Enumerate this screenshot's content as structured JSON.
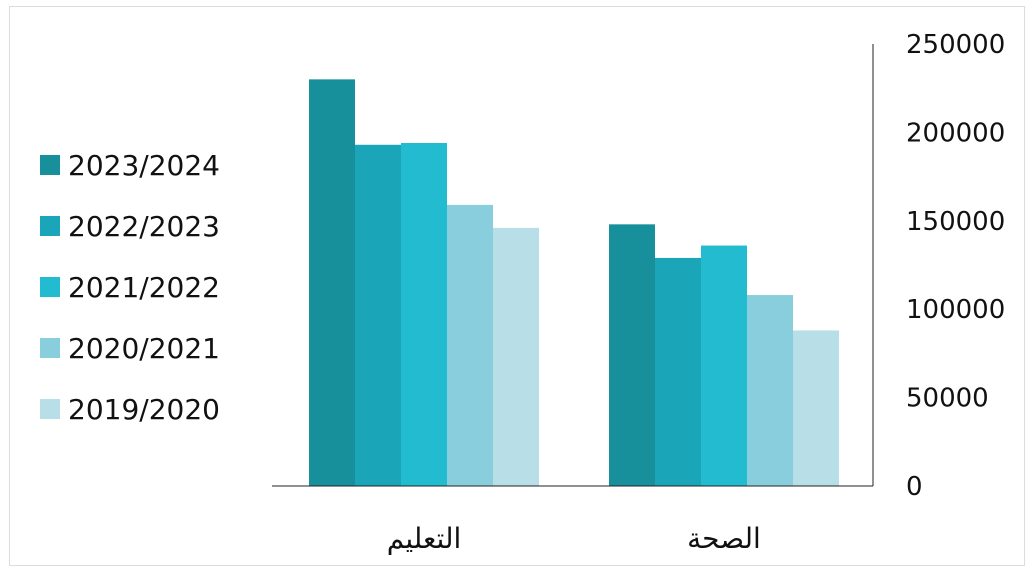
{
  "chart_data": {
    "type": "bar",
    "title": "",
    "xlabel": "",
    "ylabel": "",
    "categories": [
      "التعليم",
      "الصحة"
    ],
    "series": [
      {
        "name": "2023/2024",
        "color": "#17909C",
        "values": [
          230000,
          148000
        ]
      },
      {
        "name": "2022/2023",
        "color": "#1BA5B8",
        "values": [
          193000,
          129000
        ]
      },
      {
        "name": "2021/2022",
        "color": "#23BBD0",
        "values": [
          194000,
          136000
        ]
      },
      {
        "name": "2020/2021",
        "color": "#89CEDD",
        "values": [
          159000,
          108000
        ]
      },
      {
        "name": "2019/2020",
        "color": "#B8DFE8",
        "values": [
          146000,
          88000
        ]
      }
    ],
    "yticks": [
      "0",
      "50000",
      "100000",
      "150000",
      "200000",
      "250000"
    ],
    "ylim": [
      0,
      250000
    ],
    "grid": false,
    "legend": "left",
    "yaxis_position": "right"
  }
}
